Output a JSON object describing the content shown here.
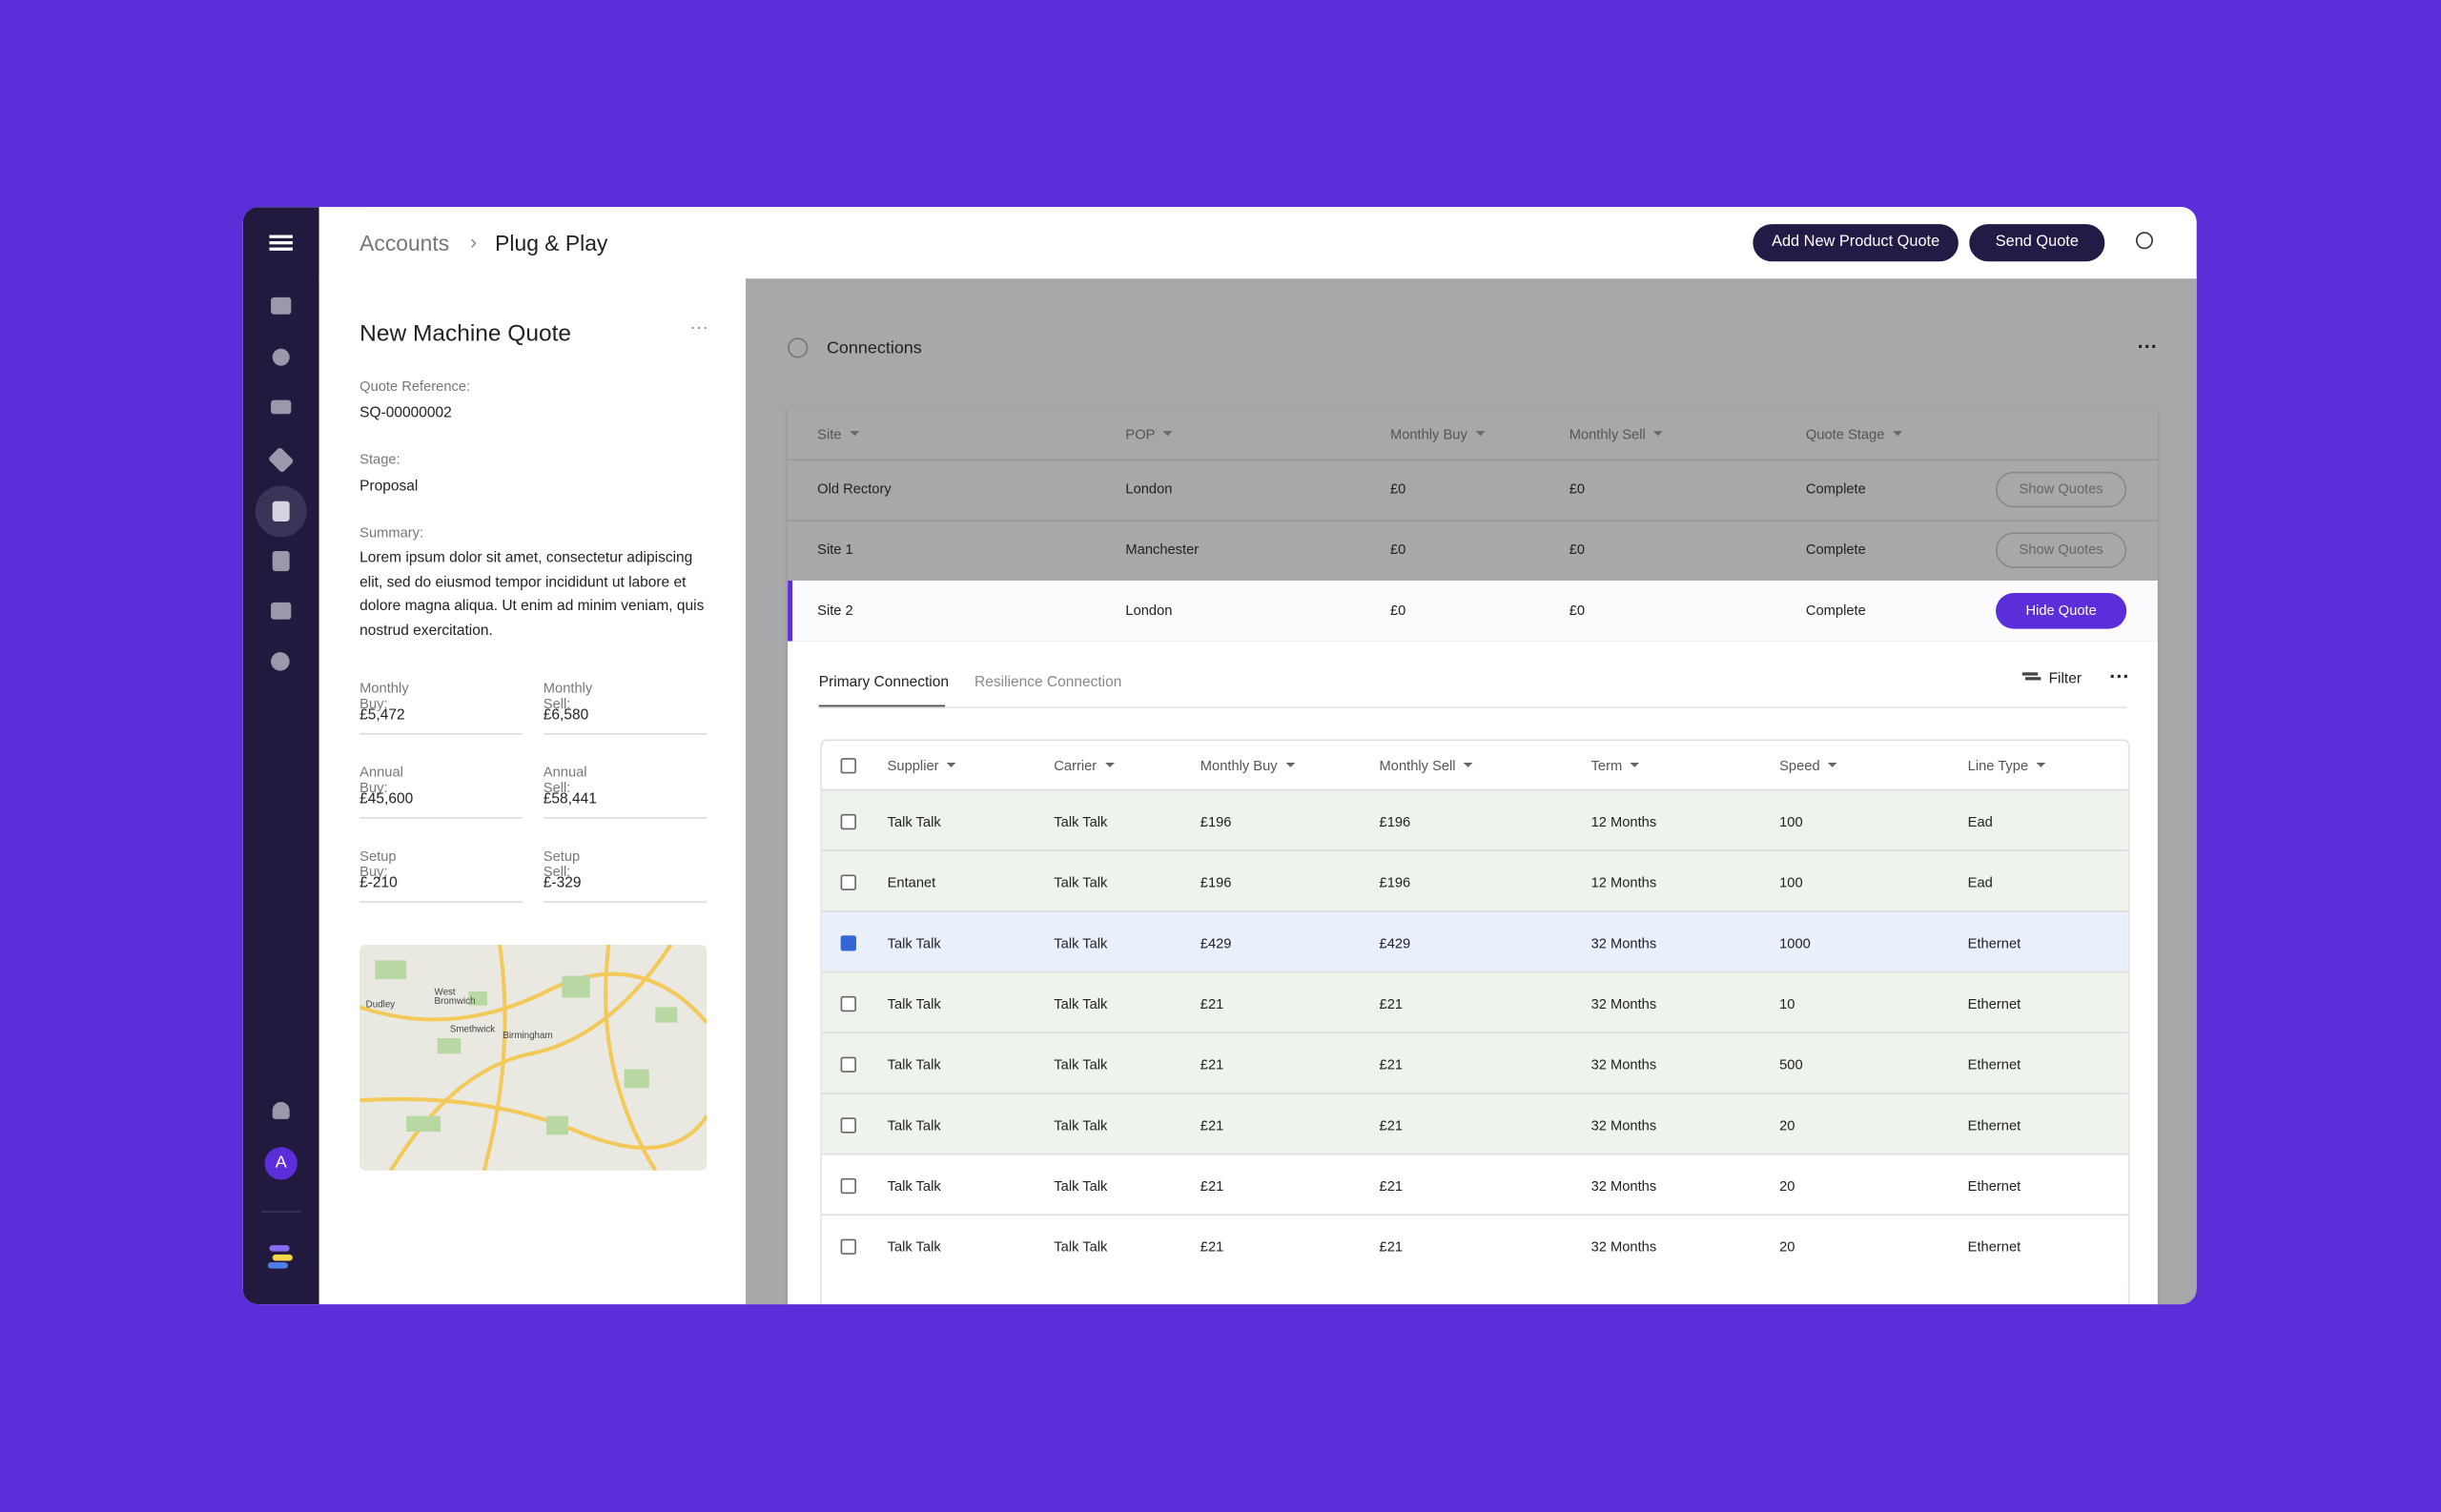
{
  "header": {
    "breadcrumb": [
      "Accounts",
      "Plug & Play"
    ],
    "buttons": [
      "Add New Product Quote",
      "Send Quote"
    ]
  },
  "quote": {
    "title": "New Machine Quote",
    "reference_label": "Quote Reference:",
    "reference": "SQ-00000002",
    "stage_label": "Stage:",
    "stage": "Proposal",
    "summary_label": "Summary:",
    "summary": "Lorem ipsum dolor sit amet, consectetur adipiscing elit, sed do eiusmod tempor incididunt ut labore et dolore magna aliqua. Ut enim ad minim veniam, quis nostrud exercitation.",
    "figures": [
      {
        "label": "Monthly Buy:",
        "value": "£5,472"
      },
      {
        "label": "Monthly Sell:",
        "value": "£6,580"
      },
      {
        "label": "Annual Buy:",
        "value": "£45,600"
      },
      {
        "label": "Annual Sell:",
        "value": "£58,441"
      },
      {
        "label": "Setup Buy:",
        "value": "£-210"
      },
      {
        "label": "Setup Sell:",
        "value": "£-329"
      }
    ],
    "map_labels": [
      "Dudley",
      "West Bromwich",
      "Smethwick",
      "Birmingham"
    ]
  },
  "connections": {
    "title": "Connections",
    "columns": [
      "Site",
      "POP",
      "Monthly Buy",
      "Monthly Sell",
      "Quote Stage"
    ],
    "rows": [
      {
        "cells": [
          "Old Rectory",
          "London",
          "£0",
          "£0",
          "Complete"
        ],
        "action": "Show Quotes",
        "selected": false
      },
      {
        "cells": [
          "Site 1",
          "Manchester",
          "£0",
          "£0",
          "Complete"
        ],
        "action": "Show Quotes",
        "selected": false
      },
      {
        "cells": [
          "Site 2",
          "London",
          "£0",
          "£0",
          "Complete"
        ],
        "action": "Hide Quote",
        "selected": true
      }
    ]
  },
  "lines": {
    "tabs": [
      "Primary Connection",
      "Resilience Connection"
    ],
    "filter": "Filter",
    "columns": [
      "Supplier",
      "Carrier",
      "Monthly Buy",
      "Monthly Sell",
      "Term",
      "Speed",
      "Line Type"
    ],
    "rows": [
      {
        "checked": false,
        "color": "#eef4ec",
        "cells": [
          "Talk Talk",
          "Talk Talk",
          "£196",
          "£196",
          "12 Months",
          "100",
          "Ead"
        ]
      },
      {
        "checked": false,
        "color": "#eef4ec",
        "cells": [
          "Entanet",
          "Talk Talk",
          "£196",
          "£196",
          "12 Months",
          "100",
          "Ead"
        ]
      },
      {
        "checked": true,
        "color": "#e9f0fc",
        "cells": [
          "Talk Talk",
          "Talk Talk",
          "£429",
          "£429",
          "32 Months",
          "1000",
          "Ethernet"
        ]
      },
      {
        "checked": false,
        "color": "#eef4ec",
        "cells": [
          "Talk Talk",
          "Talk Talk",
          "£21",
          "£21",
          "32 Months",
          "10",
          "Ethernet"
        ]
      },
      {
        "checked": false,
        "color": "#eef4ec",
        "cells": [
          "Talk Talk",
          "Talk Talk",
          "£21",
          "£21",
          "32 Months",
          "500",
          "Ethernet"
        ]
      },
      {
        "checked": false,
        "color": "#eef4ec",
        "cells": [
          "Talk Talk",
          "Talk Talk",
          "£21",
          "£21",
          "32 Months",
          "20",
          "Ethernet"
        ]
      },
      {
        "checked": false,
        "color": "#ffffff",
        "cells": [
          "Talk Talk",
          "Talk Talk",
          "£21",
          "£21",
          "32 Months",
          "20",
          "Ethernet"
        ]
      },
      {
        "checked": false,
        "color": "#ffffff",
        "cells": [
          "Talk Talk",
          "Talk Talk",
          "£21",
          "£21",
          "32 Months",
          "20",
          "Ethernet"
        ]
      }
    ]
  }
}
